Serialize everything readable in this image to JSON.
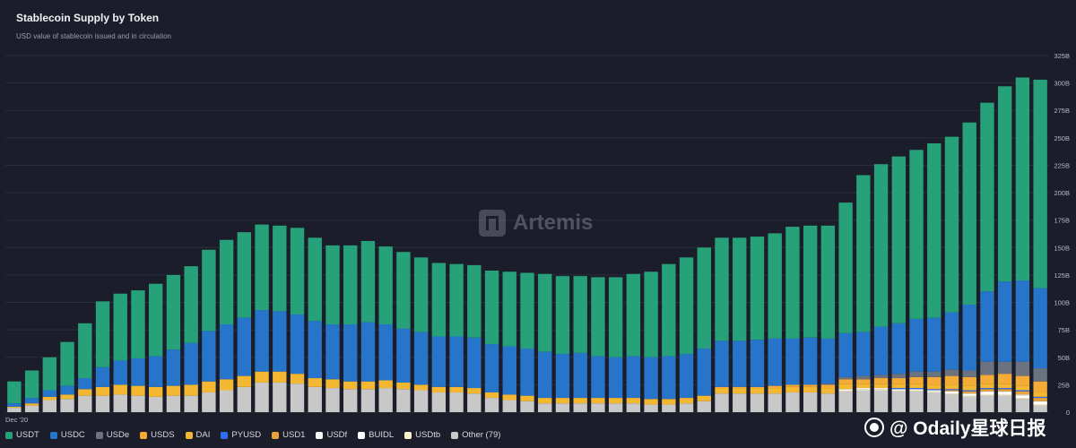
{
  "header": {
    "title": "Stablecoin Supply by Token",
    "subtitle": "USD value of stablecoin issued and in circulation"
  },
  "watermark": {
    "text": "Artemis",
    "icon": "artemis-logo-icon"
  },
  "source_badge": {
    "text": "@ Odaily星球日报",
    "icon": "odaily-logo-icon"
  },
  "chart_data": {
    "type": "bar",
    "stacked": true,
    "x_start_label": "Dec '20",
    "y_ticks": [
      "0",
      "25B",
      "50B",
      "75B",
      "100B",
      "125B",
      "150B",
      "175B",
      "200B",
      "225B",
      "250B",
      "275B",
      "300B",
      "325B"
    ],
    "ylim": [
      0,
      325
    ],
    "y_unit": "B",
    "y_axis_position": "right",
    "grid": true,
    "legend_position": "bottom-left",
    "totals": [
      28,
      38,
      50,
      64,
      81,
      101,
      108,
      111,
      117,
      125,
      133,
      148,
      157,
      164,
      171,
      170,
      168,
      159,
      152,
      152,
      156,
      151,
      146,
      141,
      136,
      135,
      134,
      129,
      128,
      127,
      126,
      124,
      124,
      123,
      123,
      126,
      128,
      135,
      141,
      150,
      159,
      159,
      160,
      163,
      169,
      170,
      170,
      191,
      216,
      226,
      233,
      239,
      245,
      251,
      264,
      282,
      297,
      305,
      303
    ],
    "series": [
      {
        "name": "USDT",
        "color": "#27a17a",
        "values": [
          20,
          25,
          30,
          40,
          50,
          60,
          61,
          62,
          66,
          68,
          70,
          74,
          77,
          78,
          78,
          78,
          79,
          76,
          72,
          72,
          74,
          71,
          70,
          68,
          67,
          66,
          66,
          67,
          68,
          69,
          71,
          71,
          70,
          72,
          73,
          75,
          78,
          84,
          88,
          92,
          94,
          94,
          94,
          96,
          102,
          102,
          103,
          119,
          142,
          147,
          151,
          153,
          158,
          160,
          166,
          172,
          178,
          185,
          190
        ]
      },
      {
        "name": "USDC",
        "color": "#2775ca",
        "values": [
          3,
          5,
          6,
          8,
          10,
          18,
          22,
          25,
          28,
          33,
          38,
          46,
          50,
          53,
          56,
          55,
          54,
          52,
          50,
          52,
          54,
          51,
          49,
          48,
          46,
          46,
          46,
          44,
          44,
          43,
          42,
          40,
          41,
          38,
          37,
          38,
          38,
          39,
          40,
          43,
          42,
          42,
          43,
          43,
          42,
          43,
          41,
          40,
          40,
          44,
          46,
          48,
          49,
          52,
          60,
          64,
          73,
          74,
          73
        ]
      },
      {
        "name": "USDe",
        "color": "#6b7280",
        "values": [
          0,
          0,
          0,
          0,
          0,
          0,
          0,
          0,
          0,
          0,
          0,
          0,
          0,
          0,
          0,
          0,
          0,
          0,
          0,
          0,
          0,
          0,
          0,
          0,
          0,
          0,
          0,
          0,
          0,
          0,
          0,
          0,
          0,
          0,
          0,
          0,
          0,
          0,
          0,
          0,
          0,
          0,
          0,
          0,
          0,
          0,
          1,
          2,
          3,
          3,
          4,
          5,
          5,
          6,
          6,
          12,
          11,
          13,
          12
        ]
      },
      {
        "name": "USDS",
        "color": "#f5ac37",
        "values": [
          0,
          0,
          0,
          0,
          0,
          0,
          0,
          0,
          0,
          0,
          0,
          0,
          0,
          0,
          0,
          0,
          0,
          0,
          0,
          0,
          0,
          0,
          0,
          0,
          0,
          0,
          0,
          0,
          0,
          0,
          0,
          0,
          0,
          0,
          0,
          0,
          0,
          0,
          0,
          0,
          1,
          1,
          1,
          2,
          2,
          2,
          3,
          4,
          4,
          5,
          5,
          6,
          7,
          8,
          8,
          8,
          9,
          9,
          10
        ]
      },
      {
        "name": "DAI",
        "color": "#f4b731",
        "values": [
          1,
          2,
          3,
          4,
          6,
          8,
          9,
          9,
          9,
          9,
          10,
          10,
          10,
          10,
          10,
          10,
          9,
          8,
          8,
          7,
          7,
          7,
          6,
          5,
          5,
          5,
          5,
          5,
          5,
          5,
          5,
          5,
          5,
          5,
          5,
          5,
          5,
          5,
          5,
          5,
          5,
          5,
          5,
          5,
          5,
          5,
          5,
          5,
          4,
          4,
          4,
          4,
          4,
          4,
          4,
          4,
          4,
          4,
          4
        ]
      },
      {
        "name": "PYUSD",
        "color": "#2f6df2",
        "values": [
          0,
          0,
          0,
          0,
          0,
          0,
          0,
          0,
          0,
          0,
          0,
          0,
          0,
          0,
          0,
          0,
          0,
          0,
          0,
          0,
          0,
          0,
          0,
          0,
          0,
          0,
          0,
          0,
          0,
          0,
          0,
          0,
          0,
          0,
          0,
          0,
          0,
          0,
          0,
          0,
          0,
          0,
          0,
          0,
          0,
          0,
          0,
          0,
          0,
          0,
          1,
          1,
          1,
          1,
          1,
          1,
          1,
          1,
          1
        ]
      },
      {
        "name": "USD1",
        "color": "#e8a33a",
        "values": [
          0,
          0,
          0,
          0,
          0,
          0,
          0,
          0,
          0,
          0,
          0,
          0,
          0,
          0,
          0,
          0,
          0,
          0,
          0,
          0,
          0,
          0,
          0,
          0,
          0,
          0,
          0,
          0,
          0,
          0,
          0,
          0,
          0,
          0,
          0,
          0,
          0,
          0,
          0,
          0,
          0,
          0,
          0,
          0,
          0,
          0,
          0,
          0,
          0,
          0,
          0,
          0,
          0,
          1,
          2,
          2,
          2,
          3,
          3
        ]
      },
      {
        "name": "USDf",
        "color": "#f5f5f5",
        "values": [
          0,
          0,
          0,
          0,
          0,
          0,
          0,
          0,
          0,
          0,
          0,
          0,
          0,
          0,
          0,
          0,
          0,
          0,
          0,
          0,
          0,
          0,
          0,
          0,
          0,
          0,
          0,
          0,
          0,
          0,
          0,
          0,
          0,
          0,
          0,
          0,
          0,
          0,
          0,
          0,
          0,
          0,
          0,
          0,
          0,
          0,
          0,
          0,
          0,
          0,
          0,
          0,
          0,
          0,
          0,
          1,
          1,
          1,
          1
        ]
      },
      {
        "name": "BUIDL",
        "color": "#ffffff",
        "values": [
          0,
          0,
          0,
          0,
          0,
          0,
          0,
          0,
          0,
          0,
          0,
          0,
          0,
          0,
          0,
          0,
          0,
          0,
          0,
          0,
          0,
          0,
          0,
          0,
          0,
          0,
          0,
          0,
          0,
          0,
          0,
          0,
          0,
          0,
          0,
          0,
          0,
          0,
          0,
          0,
          0,
          0,
          0,
          0,
          0,
          0,
          0,
          1,
          1,
          1,
          1,
          1,
          1,
          2,
          2,
          2,
          2,
          2,
          2
        ]
      },
      {
        "name": "USDtb",
        "color": "#fef3c7",
        "values": [
          0,
          0,
          0,
          0,
          0,
          0,
          0,
          0,
          0,
          0,
          0,
          0,
          0,
          0,
          0,
          0,
          0,
          0,
          0,
          0,
          0,
          0,
          0,
          0,
          0,
          0,
          0,
          0,
          0,
          0,
          0,
          0,
          0,
          0,
          0,
          0,
          0,
          0,
          0,
          0,
          0,
          0,
          0,
          0,
          0,
          0,
          0,
          1,
          1,
          1,
          1,
          1,
          1,
          1,
          1,
          1,
          1,
          1,
          1
        ]
      },
      {
        "name": "Other (79)",
        "color": "#c8c8c8",
        "values": [
          4,
          6,
          11,
          12,
          15,
          15,
          16,
          15,
          14,
          15,
          15,
          18,
          20,
          23,
          27,
          27,
          26,
          23,
          22,
          21,
          21,
          22,
          21,
          20,
          18,
          18,
          17,
          13,
          11,
          10,
          8,
          8,
          8,
          8,
          8,
          8,
          7,
          7,
          8,
          10,
          17,
          17,
          17,
          17,
          18,
          18,
          17,
          19,
          20,
          20,
          19,
          19,
          18,
          16,
          14,
          15,
          15,
          12,
          6
        ]
      }
    ]
  }
}
